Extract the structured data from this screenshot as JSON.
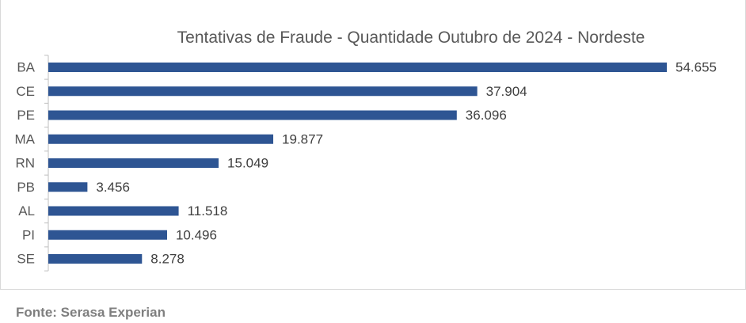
{
  "chart_data": {
    "type": "bar",
    "orientation": "horizontal",
    "title": "Tentativas de Fraude - Quantidade Outubro de 2024  - Nordeste",
    "categories": [
      "BA",
      "CE",
      "PE",
      "MA",
      "RN",
      "PB",
      "AL",
      "PI",
      "SE"
    ],
    "values": [
      54655,
      37904,
      36096,
      19877,
      15049,
      3456,
      11518,
      10496,
      8278
    ],
    "value_labels": [
      "54.655",
      "37.904",
      "36.096",
      "19.877",
      "15.049",
      "3.456",
      "11.518",
      "10.496",
      "8.278"
    ],
    "xlim": [
      0,
      54655
    ],
    "bar_color": "#2e5593",
    "grid": false,
    "legend": "none"
  },
  "footer": {
    "source": "Fonte: Serasa Experian"
  }
}
